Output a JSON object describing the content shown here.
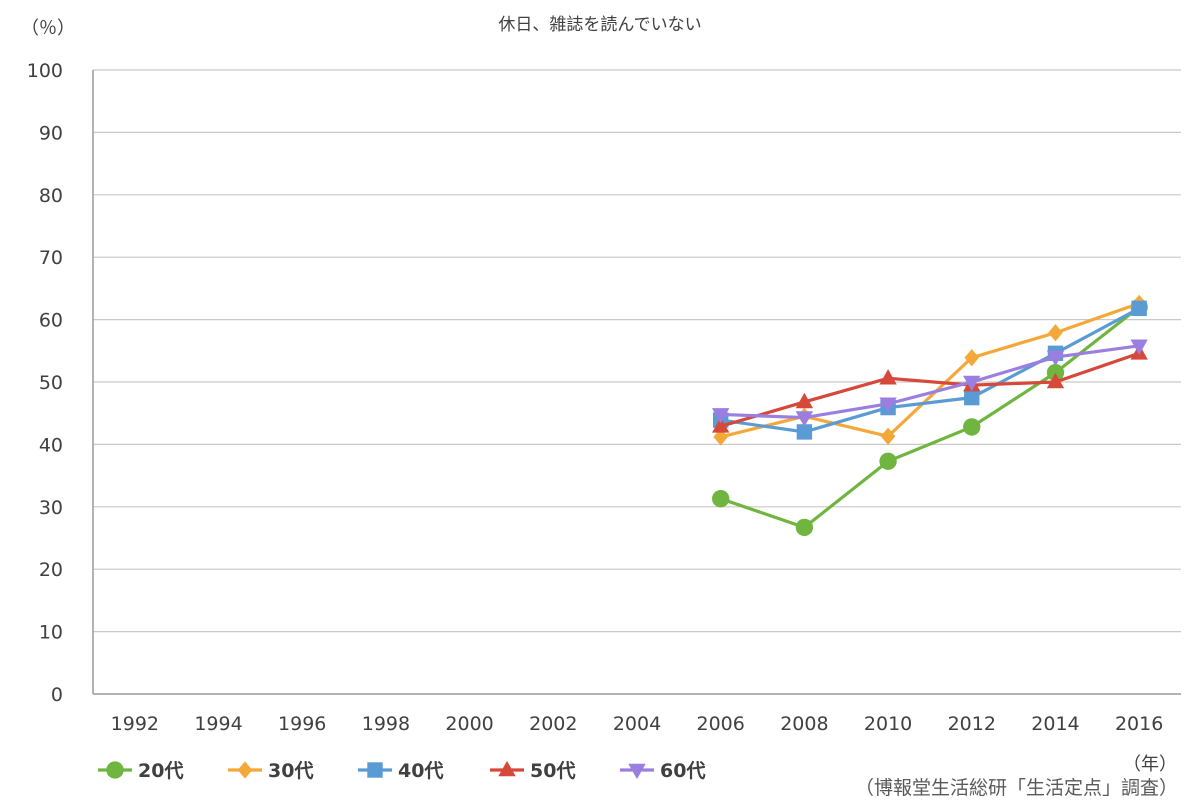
{
  "chart_data": {
    "type": "line",
    "title": "休日、雑誌を読んでいない",
    "ylabel": "（％）",
    "xlabel": "（年）",
    "source": "（博報堂生活総研「生活定点」調査）",
    "ylim": [
      0,
      100
    ],
    "yticks": [
      "0",
      "10",
      "20",
      "30",
      "40",
      "50",
      "60",
      "70",
      "80",
      "90",
      "100"
    ],
    "categories": [
      "1992",
      "1994",
      "1996",
      "1998",
      "2000",
      "2002",
      "2004",
      "2006",
      "2008",
      "2010",
      "2012",
      "2014",
      "2016"
    ],
    "grid": true,
    "legend_position": "bottom-left",
    "series": [
      {
        "name": "20代",
        "color": "#6fb540",
        "marker": "circle",
        "values": [
          null,
          null,
          null,
          null,
          null,
          null,
          null,
          31.3,
          26.7,
          37.3,
          42.8,
          51.5,
          62.0
        ]
      },
      {
        "name": "30代",
        "color": "#f5a83a",
        "marker": "diamond",
        "values": [
          null,
          null,
          null,
          null,
          null,
          null,
          null,
          41.2,
          44.5,
          41.3,
          53.9,
          57.9,
          62.6
        ]
      },
      {
        "name": "40代",
        "color": "#5a9bd5",
        "marker": "square",
        "values": [
          null,
          null,
          null,
          null,
          null,
          null,
          null,
          43.9,
          42.0,
          45.9,
          47.5,
          54.6,
          61.8
        ]
      },
      {
        "name": "50代",
        "color": "#d5483a",
        "marker": "triangle",
        "values": [
          null,
          null,
          null,
          null,
          null,
          null,
          null,
          42.9,
          46.8,
          50.6,
          49.5,
          50.0,
          54.6
        ]
      },
      {
        "name": "60代",
        "color": "#9a7fe0",
        "marker": "triangle-down",
        "values": [
          null,
          null,
          null,
          null,
          null,
          null,
          null,
          44.8,
          44.3,
          46.5,
          50.0,
          54.0,
          55.8
        ]
      }
    ]
  }
}
